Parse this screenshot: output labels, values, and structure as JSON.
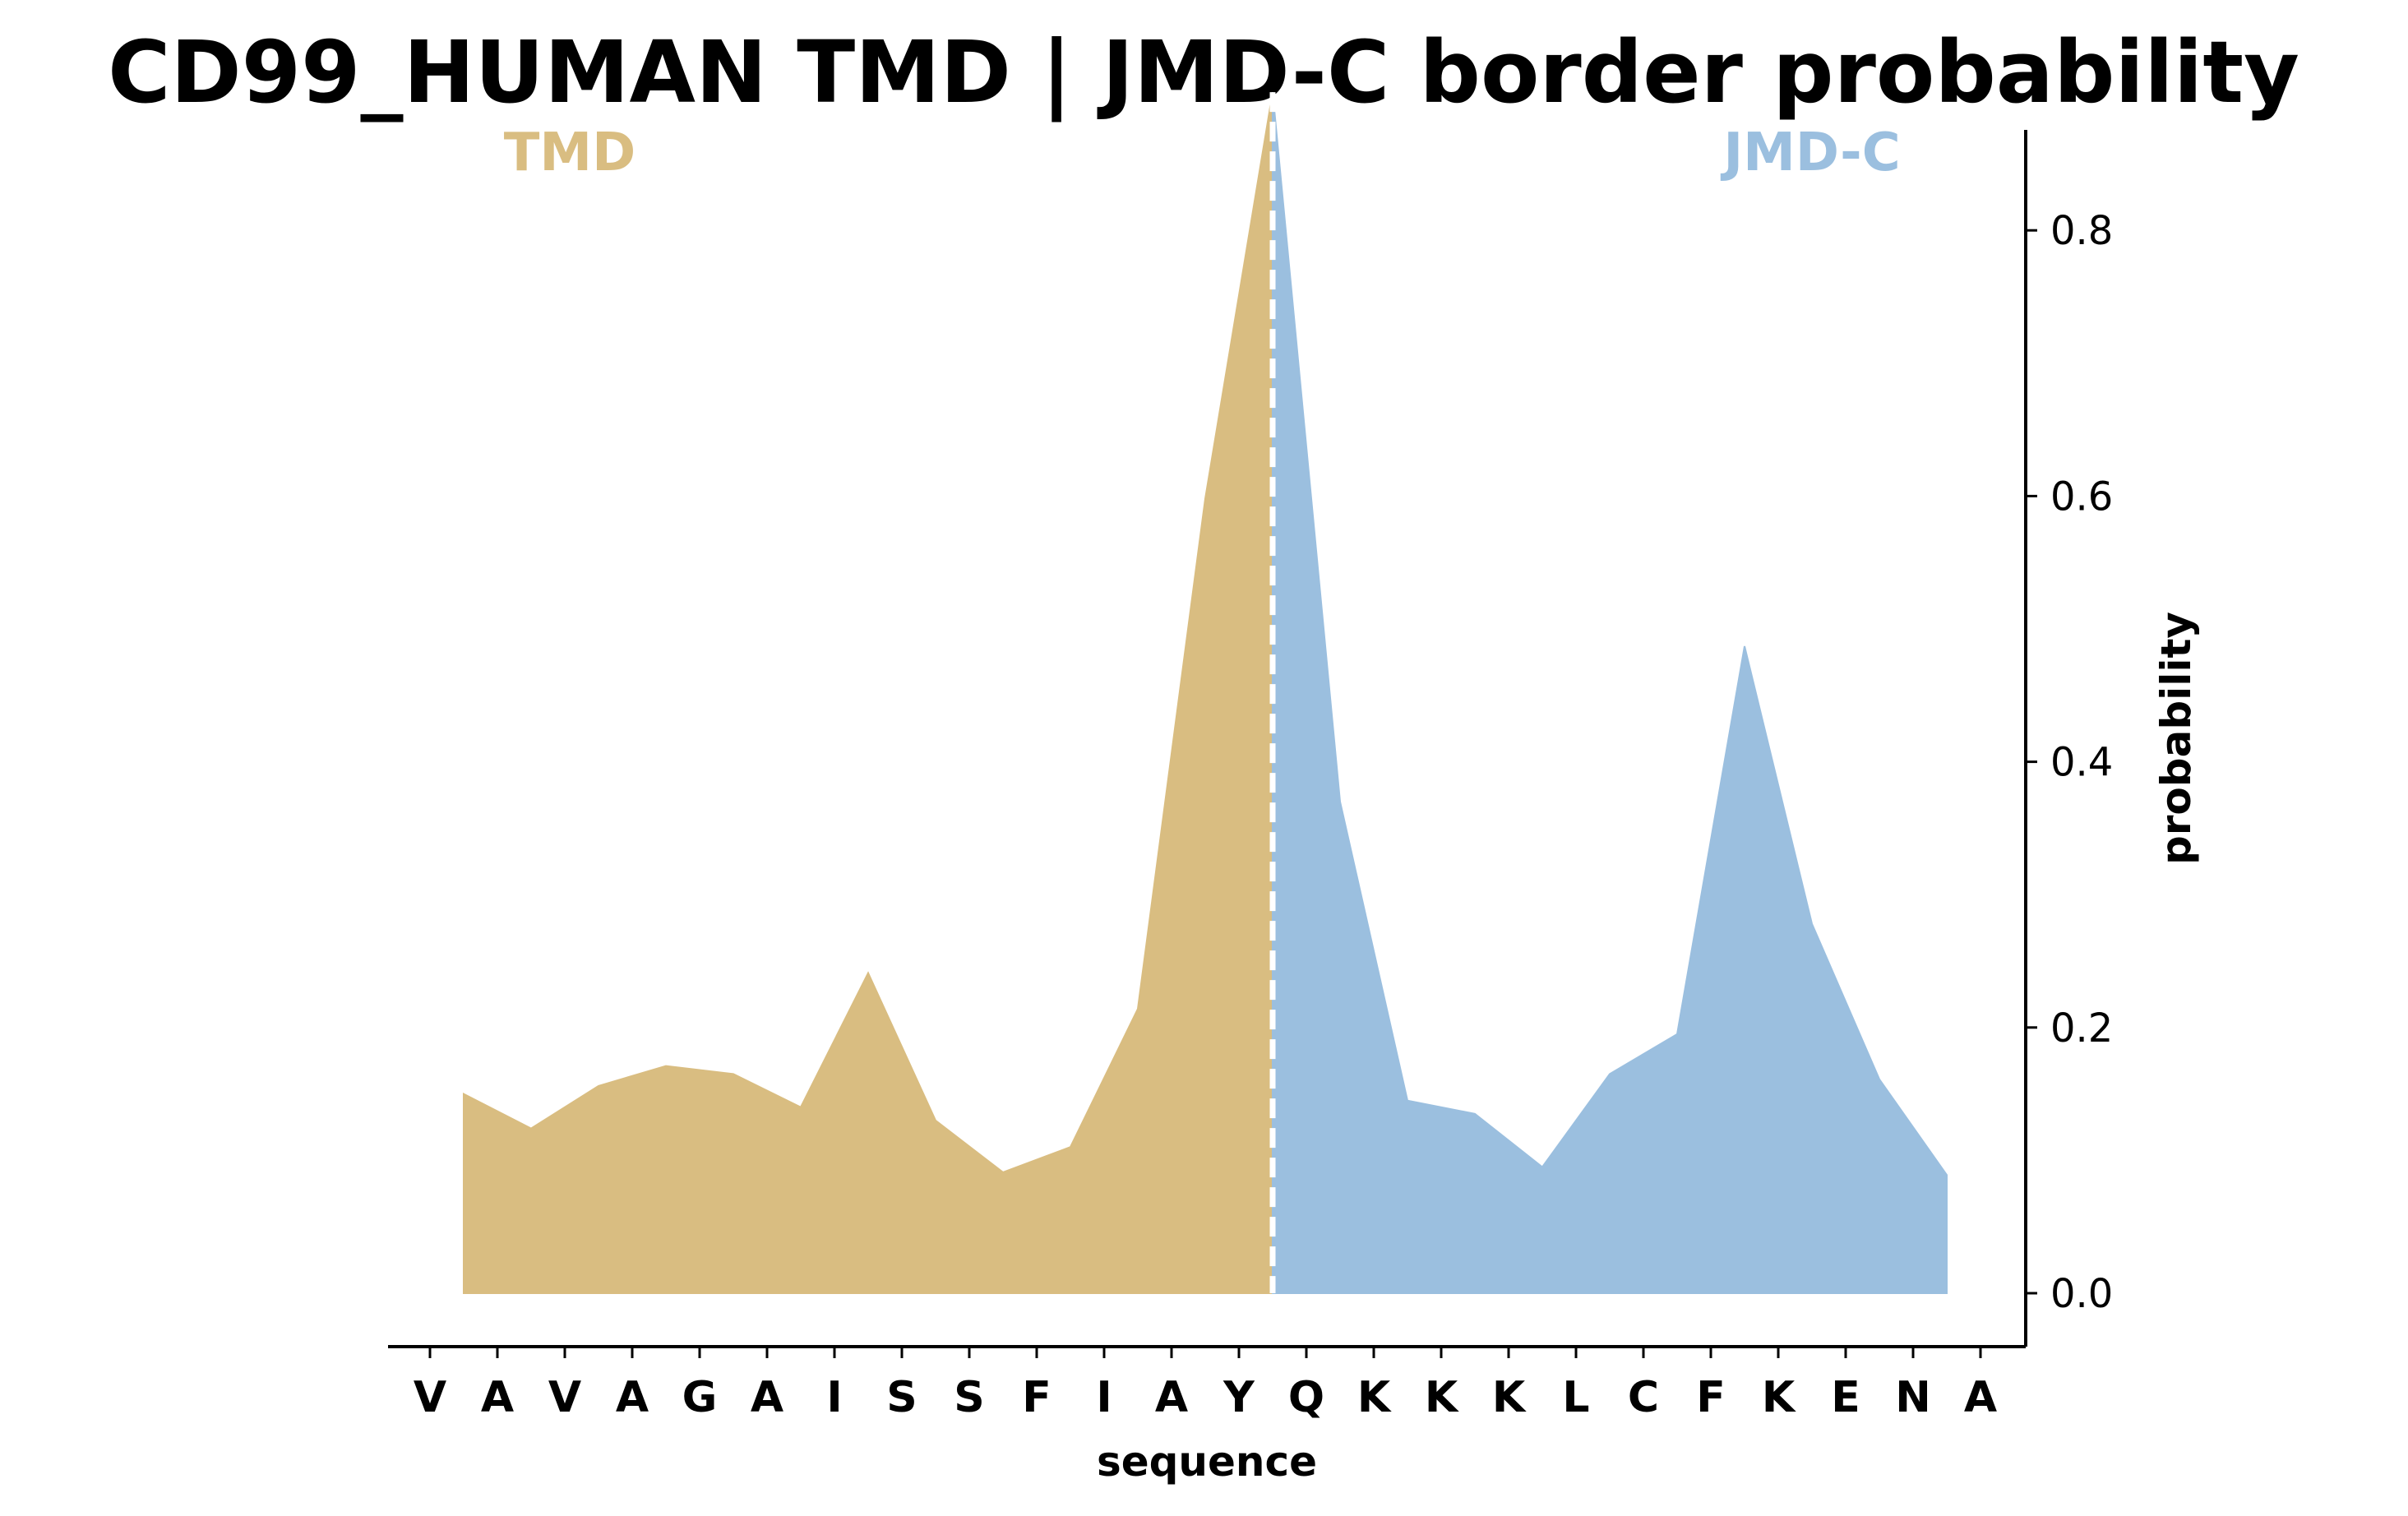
{
  "chart_data": {
    "type": "area",
    "title": "CD99_HUMAN TMD | JMD-C border probability",
    "xlabel": "sequence",
    "ylabel": "probability",
    "ylim": [
      -0.043,
      0.95
    ],
    "yticks": [
      "0.0",
      "0.2",
      "0.4",
      "0.6",
      "0.8"
    ],
    "ytick_values": [
      0.0,
      0.2,
      0.4,
      0.6,
      0.8
    ],
    "categories": [
      "V",
      "A",
      "V",
      "A",
      "G",
      "A",
      "I",
      "S",
      "S",
      "F",
      "I",
      "A",
      "Y",
      "Q",
      "K",
      "K",
      "K",
      "L",
      "C",
      "F",
      "K",
      "E",
      "N",
      "A"
    ],
    "region_labels": [
      {
        "text": "TMD",
        "color": "#d9bd81"
      },
      {
        "text": "JMD-C",
        "color": "#9bbfdf"
      }
    ],
    "colors": {
      "tmd": "#d9bd81",
      "jmd_c": "#9bbfdf",
      "border": "#ffffff"
    },
    "border_x": 12.5,
    "series": [
      {
        "region": "TMD",
        "x": [
          0.5,
          1.5,
          2.5,
          3.5,
          4.5,
          5.5,
          6.5,
          7.5,
          8.5,
          9.5,
          10.5,
          11.5,
          12.5
        ],
        "values": [
          0.15,
          0.124,
          0.156,
          0.171,
          0.165,
          0.14,
          0.241,
          0.13,
          0.091,
          0.11,
          0.214,
          0.598,
          0.904
        ]
      },
      {
        "region": "JMD-C",
        "x": [
          12.5,
          13.5,
          14.5,
          15.5,
          16.5,
          17.5,
          18.5,
          19.5,
          20.5,
          21.5,
          22.5
        ],
        "values": [
          0.904,
          0.37,
          0.145,
          0.135,
          0.095,
          0.165,
          0.195,
          0.487,
          0.278,
          0.161,
          0.089
        ]
      }
    ],
    "grid": false,
    "y_axis_position": "right"
  }
}
